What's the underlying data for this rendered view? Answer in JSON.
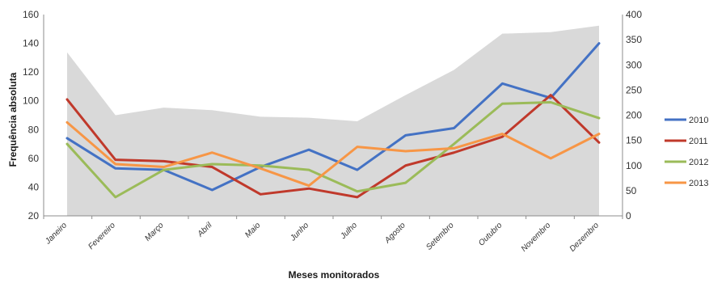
{
  "chart_data": {
    "type": "line",
    "xlabel": "Meses monitorados",
    "ylabel": "Frequência absoluta",
    "ylim": [
      20,
      160
    ],
    "yticks": [
      20,
      40,
      60,
      80,
      100,
      120,
      140,
      160
    ],
    "y2lim": [
      0,
      400
    ],
    "y2ticks": [
      0,
      50,
      100,
      150,
      200,
      250,
      300,
      350,
      400
    ],
    "categories": [
      "Janeiro",
      "Fevereiro",
      "Março",
      "Abril",
      "Maio",
      "Junho",
      "Julho",
      "Agosto",
      "Setembro",
      "Outubro",
      "Novembro",
      "Dezembro"
    ],
    "area": {
      "axis": "right",
      "color": "#d9d9d9",
      "values": [
        325,
        200,
        215,
        210,
        197,
        195,
        188,
        240,
        290,
        362,
        365,
        378
      ]
    },
    "series": [
      {
        "name": "2010",
        "color": "#4472c4",
        "values": [
          74,
          53,
          52,
          38,
          54,
          66,
          52,
          76,
          81,
          112,
          102,
          140
        ]
      },
      {
        "name": "2011",
        "color": "#c0392b",
        "values": [
          101,
          59,
          58,
          54,
          35,
          39,
          33,
          55,
          64,
          75,
          104,
          71
        ]
      },
      {
        "name": "2012",
        "color": "#9bbb59",
        "values": [
          70,
          33,
          52,
          56,
          55,
          52,
          37,
          43,
          70,
          98,
          99,
          88
        ]
      },
      {
        "name": "2013",
        "color": "#f79646",
        "values": [
          85,
          56,
          54,
          64,
          53,
          41,
          68,
          65,
          67,
          77,
          60,
          77
        ]
      }
    ],
    "grid": false,
    "legend_position": "right"
  }
}
